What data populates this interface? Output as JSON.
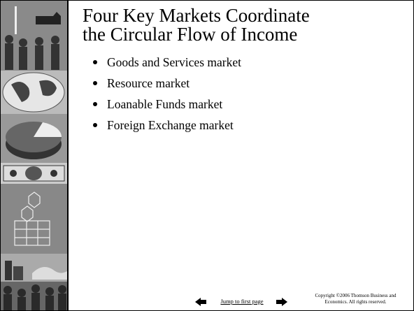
{
  "title_lines": [
    "Four Key Markets Coordinate",
    "the Circular Flow of Income"
  ],
  "bullets": [
    "Goods and Services market",
    "Resource market",
    "Loanable Funds market",
    "Foreign Exchange market"
  ],
  "footer": {
    "link": "Jump to first page",
    "copyright_lines": [
      "Copyright ©2006  Thomson Business and",
      "Economics. All rights reserved."
    ]
  }
}
